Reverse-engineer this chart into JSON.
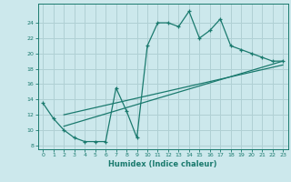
{
  "title": "",
  "xlabel": "Humidex (Indice chaleur)",
  "bg_color": "#cce8ec",
  "line_color": "#1a7a6e",
  "grid_color": "#b0d0d4",
  "xlim": [
    -0.5,
    23.5
  ],
  "ylim": [
    7.5,
    26.5
  ],
  "xticks": [
    0,
    1,
    2,
    3,
    4,
    5,
    6,
    7,
    8,
    9,
    10,
    11,
    12,
    13,
    14,
    15,
    16,
    17,
    18,
    19,
    20,
    21,
    22,
    23
  ],
  "yticks": [
    8,
    10,
    12,
    14,
    16,
    18,
    20,
    22,
    24
  ],
  "main_x": [
    0,
    1,
    2,
    3,
    4,
    5,
    6,
    7,
    8,
    9,
    10,
    11,
    12,
    13,
    14,
    15,
    16,
    17,
    18,
    19,
    20,
    21,
    22,
    23
  ],
  "main_y": [
    13.5,
    11.5,
    10.0,
    9.0,
    8.5,
    8.5,
    8.5,
    15.5,
    12.5,
    9.0,
    21.0,
    24.0,
    24.0,
    23.5,
    25.5,
    22.0,
    23.0,
    24.5,
    21.0,
    20.5,
    20.0,
    19.5,
    19.0,
    19.0
  ],
  "line1_x": [
    2,
    23
  ],
  "line1_y": [
    10.5,
    19.0
  ],
  "line2_x": [
    2,
    23
  ],
  "line2_y": [
    12.0,
    18.5
  ]
}
